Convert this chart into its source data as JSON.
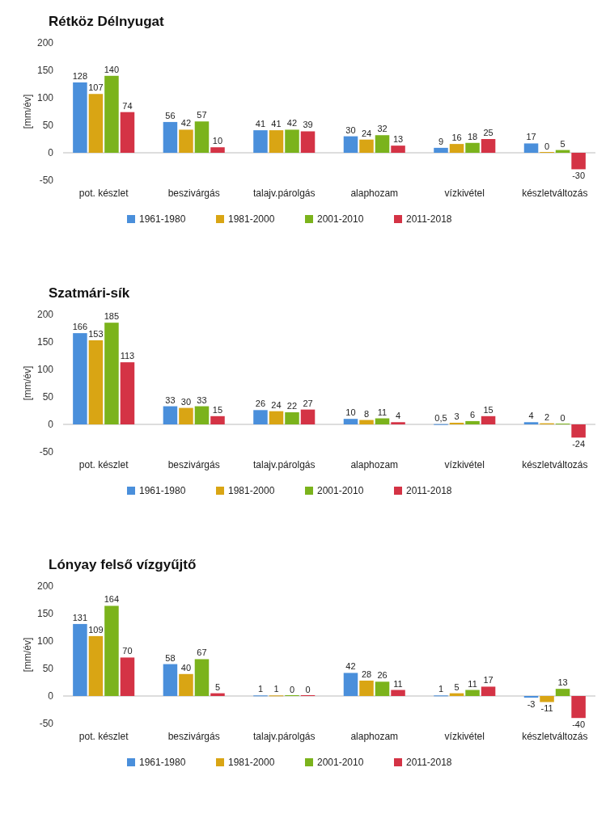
{
  "chart_data": [
    {
      "type": "bar",
      "title": "Rétköz Délnyugat",
      "ylabel": "[mm/év]",
      "categories": [
        "pot. készlet",
        "beszivárgás",
        "talajv.párolgás",
        "alaphozam",
        "vízkivétel",
        "készletváltozás"
      ],
      "ylim": [
        -50,
        200
      ],
      "yticks": [
        -50,
        0,
        50,
        100,
        150,
        200
      ],
      "legend": "bottom",
      "data_labels": true,
      "series": [
        {
          "name": "1961-1980",
          "color": "#4a8fdb",
          "values": [
            128,
            56,
            41,
            30,
            9,
            17
          ]
        },
        {
          "name": "1981-2000",
          "color": "#d9a514",
          "values": [
            107,
            42,
            41,
            24,
            16,
            0
          ]
        },
        {
          "name": "2001-2010",
          "color": "#7bb31c",
          "values": [
            140,
            57,
            42,
            32,
            18,
            5
          ]
        },
        {
          "name": "2011-2018",
          "color": "#d43345",
          "values": [
            74,
            10,
            39,
            13,
            25,
            -30
          ]
        }
      ]
    },
    {
      "type": "bar",
      "title": "Szatmári-sík",
      "ylabel": "[mm/év]",
      "categories": [
        "pot. készlet",
        "beszivárgás",
        "talajv.párolgás",
        "alaphozam",
        "vízkivétel",
        "készletváltozás"
      ],
      "ylim": [
        -50,
        200
      ],
      "yticks": [
        -50,
        0,
        50,
        100,
        150,
        200
      ],
      "legend": "bottom",
      "series": [
        {
          "name": "1961-1980",
          "color": "#4a8fdb",
          "values": [
            166,
            33,
            26,
            10,
            0.5,
            4
          ],
          "value_labels": [
            "166",
            "33",
            "26",
            "10",
            "0,5",
            "4"
          ]
        },
        {
          "name": "1981-2000",
          "color": "#d9a514",
          "values": [
            153,
            30,
            24,
            8,
            3,
            2
          ],
          "value_labels": [
            "153",
            "30",
            "24",
            "8",
            "3",
            "2"
          ]
        },
        {
          "name": "2001-2010",
          "color": "#7bb31c",
          "values": [
            185,
            33,
            22,
            11,
            6,
            0
          ],
          "value_labels": [
            "185",
            "33",
            "22",
            "11",
            "6",
            "0"
          ]
        },
        {
          "name": "2011-2018",
          "color": "#d43345",
          "values": [
            113,
            15,
            27,
            4,
            15,
            -24
          ],
          "value_labels": [
            "113",
            "15",
            "27",
            "4",
            "15",
            "-24"
          ]
        }
      ]
    },
    {
      "type": "bar",
      "title": "Lónyay felső vízgyűjtő",
      "ylabel": "[mm/év]",
      "categories": [
        "pot. készlet",
        "beszivárgás",
        "talajv.párolgás",
        "alaphozam",
        "vízkivétel",
        "készletváltozás"
      ],
      "ylim": [
        -50,
        200
      ],
      "yticks": [
        -50,
        0,
        50,
        100,
        150,
        200
      ],
      "legend": "bottom",
      "data_labels": true,
      "series": [
        {
          "name": "1961-1980",
          "color": "#4a8fdb",
          "values": [
            131,
            58,
            1,
            42,
            1,
            -3
          ]
        },
        {
          "name": "1981-2000",
          "color": "#d9a514",
          "values": [
            109,
            40,
            1,
            28,
            5,
            -11
          ]
        },
        {
          "name": "2001-2010",
          "color": "#7bb31c",
          "values": [
            164,
            67,
            0,
            26,
            11,
            13
          ]
        },
        {
          "name": "2011-2018",
          "color": "#d43345",
          "values": [
            70,
            5,
            0,
            11,
            17,
            -40
          ]
        }
      ]
    }
  ]
}
